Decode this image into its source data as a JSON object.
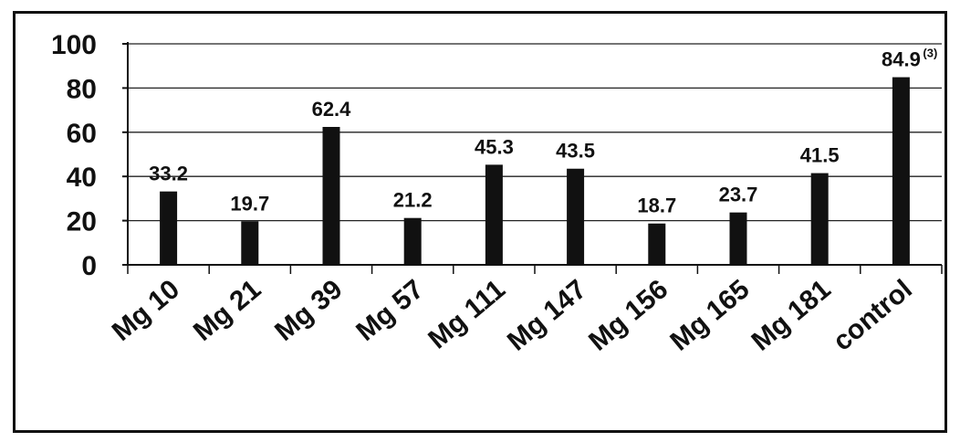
{
  "chart_data": {
    "type": "bar",
    "categories": [
      "Mg 10",
      "Mg 21",
      "Mg 39",
      "Mg 57",
      "Mg 111",
      "Mg 147",
      "Mg 156",
      "Mg 165",
      "Mg 181",
      "control"
    ],
    "values": [
      33.2,
      19.7,
      62.4,
      21.2,
      45.3,
      43.5,
      18.7,
      23.7,
      41.5,
      84.9
    ],
    "data_labels": [
      "33.2",
      "19.7",
      "62.4",
      "21.2",
      "45.3",
      "43.5",
      "18.7",
      "23.7",
      "41.5",
      "84.9"
    ],
    "data_label_superscripts": [
      "",
      "",
      "",
      "",
      "",
      "",
      "",
      "",
      "",
      "(3)"
    ],
    "ylim": [
      0,
      100
    ],
    "yticks": [
      "0",
      "20",
      "40",
      "60",
      "80",
      "100"
    ],
    "title": "",
    "xlabel": "",
    "ylabel": "",
    "grid": true,
    "bar_color": "#111111"
  }
}
